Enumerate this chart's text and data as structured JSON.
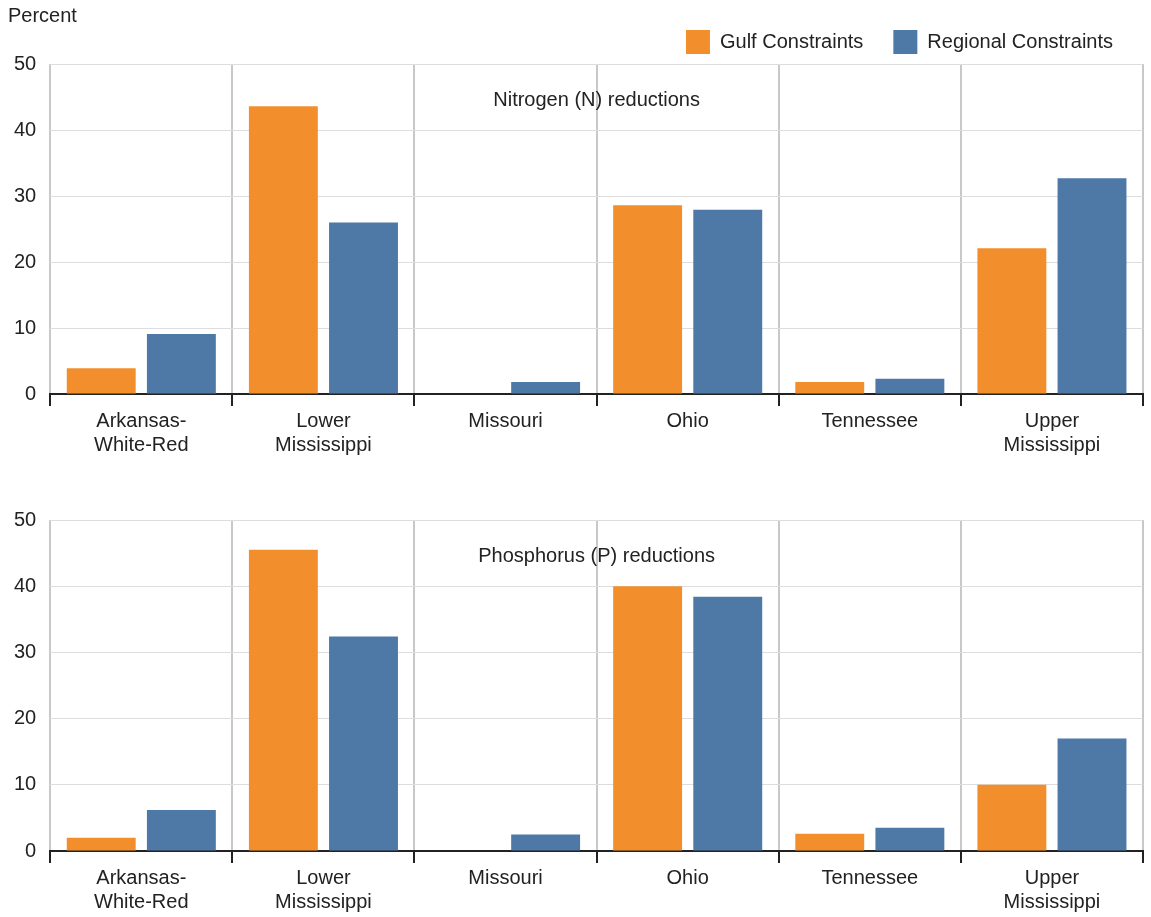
{
  "chart_data": [
    {
      "type": "bar",
      "title": "Nitrogen (N) reductions",
      "ylabel": "Percent",
      "categories": [
        "Arkansas-White-Red",
        "Lower Mississippi",
        "Missouri",
        "Ohio",
        "Tennessee",
        "Upper Mississippi"
      ],
      "series": [
        {
          "name": "Gulf Constraints",
          "color": "#f28f2c",
          "values": [
            3.9,
            43.6,
            0,
            28.6,
            1.8,
            22.1
          ]
        },
        {
          "name": "Regional Constraints",
          "color": "#4e79a7",
          "values": [
            9.1,
            26,
            1.8,
            27.9,
            2.3,
            32.7
          ]
        }
      ],
      "ylim": [
        0,
        50
      ],
      "yticks": [
        0,
        10,
        20,
        30,
        40,
        50
      ],
      "grid": true,
      "legend": "top right"
    },
    {
      "type": "bar",
      "title": "Phosphorus (P) reductions",
      "categories": [
        "Arkansas-White-Red",
        "Lower Mississippi",
        "Missouri",
        "Ohio",
        "Tennessee",
        "Upper Mississippi"
      ],
      "series": [
        {
          "color": "#f28f2c",
          "values": [
            2,
            45.5,
            0,
            40,
            2.6,
            10
          ]
        },
        {
          "color": "#4e79a7",
          "values": [
            6.2,
            32.4,
            2.5,
            38.4,
            3.5,
            17
          ]
        }
      ],
      "ylim": [
        0,
        50
      ],
      "yticks": [
        0,
        10,
        20,
        30,
        40,
        50
      ],
      "grid": true
    }
  ]
}
